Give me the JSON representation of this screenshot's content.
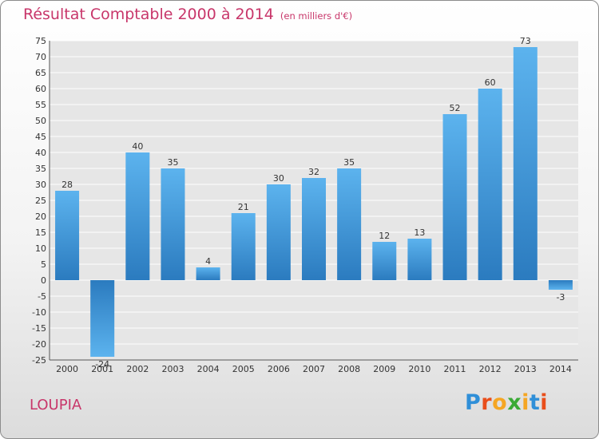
{
  "title": "Résultat Comptable 2000 à 2014",
  "subtitle": "(en milliers d'€)",
  "place": "LOUPIA",
  "logo": {
    "letters": [
      "P",
      "r",
      "o",
      "x",
      "i",
      "t",
      "i"
    ],
    "colors": [
      "#2f8fd8",
      "#e94e1b",
      "#f5a623",
      "#3aaa35",
      "#f5a623",
      "#2f8fd8",
      "#e94e1b"
    ]
  },
  "colors": {
    "bar_light": "#5cb3ee",
    "bar_dark": "#2b7bbf",
    "title": "#c8366a",
    "grid": "#ffffff"
  },
  "chart_data": {
    "type": "bar",
    "title": "Résultat Comptable 2000 à 2014",
    "subtitle": "(en milliers d'€)",
    "xlabel": "",
    "ylabel": "",
    "categories": [
      "2000",
      "2001",
      "2002",
      "2003",
      "2004",
      "2005",
      "2006",
      "2007",
      "2008",
      "2009",
      "2010",
      "2011",
      "2012",
      "2013",
      "2014"
    ],
    "values": [
      28,
      -24,
      40,
      35,
      4,
      21,
      30,
      32,
      35,
      12,
      13,
      52,
      60,
      73,
      -3
    ],
    "ylim": [
      -25,
      75
    ],
    "yticks": [
      75,
      70,
      65,
      60,
      55,
      50,
      45,
      40,
      35,
      30,
      25,
      20,
      15,
      10,
      5,
      0,
      -5,
      -10,
      -15,
      -20,
      -25
    ],
    "grid": true
  }
}
